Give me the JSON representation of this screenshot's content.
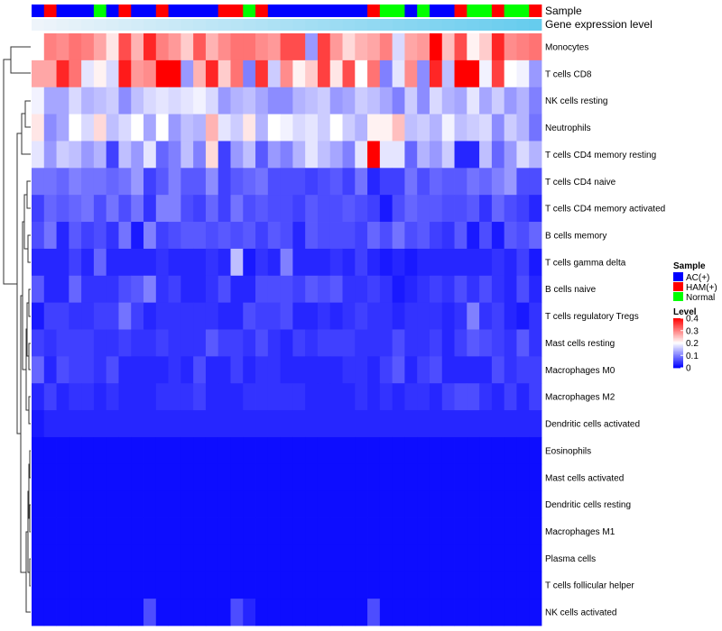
{
  "chart_data": {
    "type": "heatmap",
    "annotation_labels": {
      "sample": "Sample",
      "expression": "Gene expression level"
    },
    "sample_annotation": [
      0,
      1,
      0,
      0,
      0,
      2,
      0,
      1,
      0,
      0,
      1,
      0,
      0,
      0,
      0,
      1,
      1,
      2,
      1,
      0,
      0,
      0,
      0,
      0,
      0,
      0,
      0,
      1,
      2,
      2,
      0,
      2,
      0,
      0,
      1,
      2,
      2,
      1,
      2,
      2,
      1
    ],
    "rows": [
      "Monocytes",
      "T cells CD8",
      "NK cells resting",
      "Neutrophils",
      "T cells CD4 memory resting",
      "T cells CD4 naive",
      "T cells CD4 memory activated",
      "B cells memory",
      "T cells gamma delta",
      "B cells naive",
      "T cells regulatory  Tregs",
      "Mast cells resting",
      "Macrophages M0",
      "Macrophages M2",
      "Dendritic cells activated",
      "Eosinophils",
      "Mast cells activated",
      "Dendritic cells resting",
      "Macrophages M1",
      "Plasma cells",
      "T cells follicular helper",
      "NK cells activated"
    ],
    "values": [
      [
        0.2,
        0.3,
        0.29,
        0.31,
        0.3,
        0.27,
        0.22,
        0.34,
        0.26,
        0.37,
        0.3,
        0.28,
        0.24,
        0.33,
        0.26,
        0.29,
        0.31,
        0.31,
        0.29,
        0.28,
        0.34,
        0.34,
        0.12,
        0.35,
        0.28,
        0.23,
        0.26,
        0.27,
        0.3,
        0.17,
        0.27,
        0.28,
        0.4,
        0.25,
        0.34,
        0.21,
        0.24,
        0.37,
        0.29,
        0.3,
        0.31
      ],
      [
        0.27,
        0.27,
        0.37,
        0.31,
        0.18,
        0.21,
        0.17,
        0.38,
        0.28,
        0.29,
        0.4,
        0.4,
        0.12,
        0.26,
        0.37,
        0.24,
        0.31,
        0.1,
        0.36,
        0.16,
        0.29,
        0.21,
        0.24,
        0.35,
        0.22,
        0.34,
        0.2,
        0.31,
        0.1,
        0.18,
        0.29,
        0.11,
        0.37,
        0.15,
        0.4,
        0.4,
        0.19,
        0.35,
        0.2,
        0.19,
        0.12
      ],
      [
        0.19,
        0.13,
        0.13,
        0.17,
        0.14,
        0.15,
        0.16,
        0.11,
        0.15,
        0.17,
        0.18,
        0.17,
        0.18,
        0.19,
        0.17,
        0.12,
        0.14,
        0.15,
        0.13,
        0.11,
        0.11,
        0.14,
        0.15,
        0.16,
        0.12,
        0.13,
        0.16,
        0.15,
        0.13,
        0.1,
        0.16,
        0.11,
        0.17,
        0.14,
        0.13,
        0.18,
        0.13,
        0.16,
        0.12,
        0.14,
        0.1
      ],
      [
        0.22,
        0.11,
        0.13,
        0.2,
        0.17,
        0.23,
        0.15,
        0.17,
        0.2,
        0.13,
        0.2,
        0.12,
        0.15,
        0.14,
        0.26,
        0.18,
        0.16,
        0.22,
        0.14,
        0.2,
        0.19,
        0.17,
        0.18,
        0.16,
        0.2,
        0.16,
        0.14,
        0.21,
        0.21,
        0.25,
        0.15,
        0.16,
        0.14,
        0.19,
        0.15,
        0.16,
        0.17,
        0.11,
        0.16,
        0.14,
        0.09
      ],
      [
        0.18,
        0.12,
        0.16,
        0.15,
        0.12,
        0.14,
        0.05,
        0.15,
        0.12,
        0.18,
        0.08,
        0.1,
        0.15,
        0.1,
        0.23,
        0.05,
        0.12,
        0.15,
        0.07,
        0.12,
        0.1,
        0.14,
        0.18,
        0.15,
        0.13,
        0.1,
        0.18,
        0.4,
        0.18,
        0.18,
        0.08,
        0.14,
        0.12,
        0.16,
        0.03,
        0.03,
        0.15,
        0.08,
        0.12,
        0.17,
        0.14
      ],
      [
        0.09,
        0.09,
        0.08,
        0.1,
        0.09,
        0.09,
        0.08,
        0.09,
        0.12,
        0.05,
        0.07,
        0.1,
        0.07,
        0.07,
        0.11,
        0.05,
        0.07,
        0.08,
        0.09,
        0.06,
        0.06,
        0.06,
        0.05,
        0.06,
        0.07,
        0.05,
        0.09,
        0.03,
        0.05,
        0.05,
        0.09,
        0.06,
        0.08,
        0.07,
        0.07,
        0.09,
        0.08,
        0.1,
        0.12,
        0.06,
        0.06
      ],
      [
        0.05,
        0.08,
        0.07,
        0.08,
        0.09,
        0.06,
        0.09,
        0.06,
        0.09,
        0.04,
        0.1,
        0.1,
        0.06,
        0.05,
        0.08,
        0.05,
        0.09,
        0.06,
        0.07,
        0.06,
        0.06,
        0.05,
        0.07,
        0.06,
        0.06,
        0.07,
        0.06,
        0.05,
        0.02,
        0.06,
        0.08,
        0.07,
        0.07,
        0.06,
        0.06,
        0.07,
        0.04,
        0.08,
        0.06,
        0.05,
        0.03
      ],
      [
        0.06,
        0.09,
        0.03,
        0.07,
        0.05,
        0.06,
        0.04,
        0.09,
        0.02,
        0.1,
        0.05,
        0.06,
        0.07,
        0.07,
        0.06,
        0.07,
        0.06,
        0.07,
        0.05,
        0.07,
        0.06,
        0.03,
        0.07,
        0.06,
        0.06,
        0.06,
        0.05,
        0.08,
        0.06,
        0.09,
        0.06,
        0.07,
        0.05,
        0.04,
        0.07,
        0.02,
        0.06,
        0.02,
        0.07,
        0.06,
        0.08
      ],
      [
        0.03,
        0.03,
        0.03,
        0.05,
        0.03,
        0.08,
        0.03,
        0.03,
        0.03,
        0.03,
        0.04,
        0.03,
        0.03,
        0.03,
        0.04,
        0.03,
        0.15,
        0.02,
        0.04,
        0.03,
        0.1,
        0.03,
        0.03,
        0.03,
        0.04,
        0.03,
        0.05,
        0.03,
        0.02,
        0.03,
        0.02,
        0.03,
        0.03,
        0.03,
        0.03,
        0.03,
        0.03,
        0.04,
        0.03,
        0.05,
        0.02
      ],
      [
        0.07,
        0.03,
        0.03,
        0.08,
        0.04,
        0.04,
        0.04,
        0.06,
        0.07,
        0.1,
        0.04,
        0.05,
        0.03,
        0.03,
        0.04,
        0.06,
        0.03,
        0.03,
        0.06,
        0.06,
        0.06,
        0.05,
        0.07,
        0.06,
        0.07,
        0.04,
        0.04,
        0.05,
        0.04,
        0.02,
        0.03,
        0.04,
        0.05,
        0.04,
        0.06,
        0.04,
        0.06,
        0.04,
        0.03,
        0.06,
        0.03
      ],
      [
        0.02,
        0.05,
        0.05,
        0.04,
        0.04,
        0.05,
        0.05,
        0.09,
        0.05,
        0.03,
        0.04,
        0.04,
        0.04,
        0.04,
        0.04,
        0.03,
        0.03,
        0.06,
        0.05,
        0.05,
        0.06,
        0.03,
        0.03,
        0.04,
        0.03,
        0.04,
        0.05,
        0.04,
        0.04,
        0.03,
        0.04,
        0.04,
        0.04,
        0.03,
        0.04,
        0.1,
        0.04,
        0.05,
        0.03,
        0.02,
        0.04
      ],
      [
        0.05,
        0.04,
        0.05,
        0.05,
        0.05,
        0.04,
        0.04,
        0.05,
        0.04,
        0.04,
        0.05,
        0.04,
        0.04,
        0.04,
        0.07,
        0.05,
        0.05,
        0.04,
        0.06,
        0.04,
        0.03,
        0.05,
        0.04,
        0.05,
        0.05,
        0.05,
        0.04,
        0.04,
        0.04,
        0.06,
        0.04,
        0.04,
        0.05,
        0.03,
        0.05,
        0.07,
        0.06,
        0.05,
        0.04,
        0.07,
        0.04
      ],
      [
        0.08,
        0.03,
        0.06,
        0.05,
        0.05,
        0.04,
        0.06,
        0.03,
        0.03,
        0.03,
        0.03,
        0.04,
        0.03,
        0.06,
        0.03,
        0.03,
        0.05,
        0.03,
        0.04,
        0.04,
        0.03,
        0.03,
        0.03,
        0.03,
        0.03,
        0.04,
        0.04,
        0.03,
        0.05,
        0.07,
        0.03,
        0.05,
        0.06,
        0.03,
        0.03,
        0.03,
        0.03,
        0.06,
        0.04,
        0.05,
        0.05
      ],
      [
        0.03,
        0.05,
        0.03,
        0.04,
        0.04,
        0.03,
        0.04,
        0.03,
        0.03,
        0.03,
        0.04,
        0.04,
        0.04,
        0.05,
        0.03,
        0.03,
        0.03,
        0.04,
        0.04,
        0.04,
        0.04,
        0.04,
        0.03,
        0.03,
        0.03,
        0.03,
        0.04,
        0.03,
        0.04,
        0.03,
        0.04,
        0.04,
        0.03,
        0.05,
        0.06,
        0.06,
        0.04,
        0.03,
        0.05,
        0.03,
        0.05
      ],
      [
        0.02,
        0.03,
        0.03,
        0.03,
        0.03,
        0.03,
        0.03,
        0.03,
        0.03,
        0.03,
        0.03,
        0.03,
        0.03,
        0.03,
        0.03,
        0.03,
        0.03,
        0.03,
        0.03,
        0.03,
        0.03,
        0.03,
        0.03,
        0.03,
        0.03,
        0.03,
        0.03,
        0.03,
        0.03,
        0.03,
        0.03,
        0.03,
        0.03,
        0.03,
        0.03,
        0.03,
        0.03,
        0.03,
        0.03,
        0.03,
        0.03
      ],
      [
        0.01,
        0.01,
        0.01,
        0.01,
        0.01,
        0.01,
        0.01,
        0.01,
        0.01,
        0.01,
        0.01,
        0.01,
        0.01,
        0.01,
        0.01,
        0.01,
        0.01,
        0.01,
        0.01,
        0.01,
        0.01,
        0.01,
        0.01,
        0.01,
        0.01,
        0.01,
        0.01,
        0.01,
        0.01,
        0.01,
        0.01,
        0.01,
        0.01,
        0.01,
        0.01,
        0.01,
        0.01,
        0.01,
        0.01,
        0.01,
        0.01
      ],
      [
        0.01,
        0.01,
        0.01,
        0.01,
        0.01,
        0.01,
        0.01,
        0.01,
        0.01,
        0.01,
        0.01,
        0.01,
        0.01,
        0.01,
        0.01,
        0.01,
        0.01,
        0.01,
        0.01,
        0.01,
        0.01,
        0.01,
        0.01,
        0.01,
        0.01,
        0.01,
        0.01,
        0.01,
        0.01,
        0.01,
        0.01,
        0.01,
        0.01,
        0.01,
        0.01,
        0.01,
        0.01,
        0.01,
        0.01,
        0.01,
        0.01
      ],
      [
        0.01,
        0.01,
        0.01,
        0.01,
        0.01,
        0.01,
        0.01,
        0.01,
        0.01,
        0.01,
        0.01,
        0.01,
        0.01,
        0.01,
        0.01,
        0.01,
        0.01,
        0.01,
        0.01,
        0.01,
        0.01,
        0.01,
        0.01,
        0.01,
        0.01,
        0.01,
        0.01,
        0.01,
        0.01,
        0.01,
        0.01,
        0.01,
        0.01,
        0.01,
        0.01,
        0.01,
        0.01,
        0.01,
        0.01,
        0.01,
        0.01
      ],
      [
        0.01,
        0.01,
        0.01,
        0.01,
        0.01,
        0.01,
        0.01,
        0.01,
        0.01,
        0.01,
        0.01,
        0.01,
        0.01,
        0.01,
        0.01,
        0.01,
        0.01,
        0.01,
        0.01,
        0.01,
        0.01,
        0.01,
        0.01,
        0.01,
        0.01,
        0.01,
        0.01,
        0.01,
        0.01,
        0.01,
        0.01,
        0.01,
        0.01,
        0.01,
        0.01,
        0.01,
        0.01,
        0.01,
        0.01,
        0.01,
        0.01
      ],
      [
        0.01,
        0.01,
        0.01,
        0.01,
        0.01,
        0.01,
        0.01,
        0.01,
        0.01,
        0.01,
        0.01,
        0.01,
        0.01,
        0.01,
        0.01,
        0.01,
        0.01,
        0.01,
        0.01,
        0.01,
        0.01,
        0.01,
        0.01,
        0.01,
        0.01,
        0.01,
        0.01,
        0.01,
        0.01,
        0.01,
        0.01,
        0.01,
        0.01,
        0.01,
        0.01,
        0.01,
        0.01,
        0.01,
        0.01,
        0.01,
        0.01
      ],
      [
        0.01,
        0.01,
        0.01,
        0.01,
        0.01,
        0.01,
        0.01,
        0.01,
        0.01,
        0.01,
        0.01,
        0.01,
        0.01,
        0.01,
        0.01,
        0.01,
        0.01,
        0.01,
        0.01,
        0.01,
        0.01,
        0.01,
        0.01,
        0.01,
        0.01,
        0.01,
        0.01,
        0.01,
        0.01,
        0.01,
        0.01,
        0.01,
        0.01,
        0.01,
        0.01,
        0.01,
        0.01,
        0.01,
        0.01,
        0.01,
        0.01
      ],
      [
        0.01,
        0.01,
        0.01,
        0.01,
        0.01,
        0.01,
        0.01,
        0.01,
        0.01,
        0.06,
        0.01,
        0.01,
        0.01,
        0.01,
        0.01,
        0.01,
        0.06,
        0.03,
        0.01,
        0.01,
        0.01,
        0.01,
        0.01,
        0.01,
        0.01,
        0.01,
        0.01,
        0.06,
        0.01,
        0.01,
        0.01,
        0.01,
        0.01,
        0.01,
        0.01,
        0.01,
        0.01,
        0.01,
        0.01,
        0.01,
        0.01
      ]
    ],
    "legend": {
      "sample": {
        "title": "Sample",
        "entries": [
          "AC(+)",
          "HAM(+)",
          "Normal"
        ],
        "colors": [
          "#0000ff",
          "#ff0000",
          "#00ff00"
        ]
      },
      "level": {
        "title": "Level",
        "ticks": [
          "0.4",
          "0.3",
          "0.2",
          "0.1",
          "0"
        ],
        "range": [
          0,
          0.4
        ]
      }
    },
    "colors": {
      "low": "#0000ff",
      "mid": "#ffffff",
      "high": "#ff0000",
      "expression_bar": "#66ccee"
    }
  }
}
